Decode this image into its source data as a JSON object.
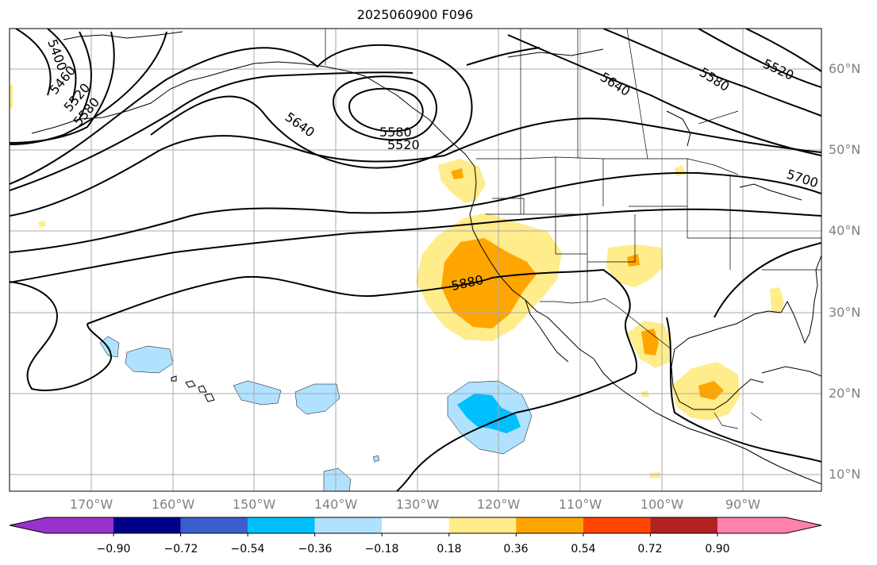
{
  "title": "2025060900 F096",
  "map": {
    "projection": "PlateCarree",
    "lon_range": [
      "180°W (approx)",
      "81°W"
    ],
    "lat_range": [
      "7°N",
      "64°N"
    ],
    "gridlines": true,
    "coastlines": true,
    "state_borders": true
  },
  "lat_labels": [
    "60°N",
    "50°N",
    "40°N",
    "30°N",
    "20°N",
    "10°N"
  ],
  "lon_labels": [
    "170°W",
    "160°W",
    "150°W",
    "140°W",
    "130°W",
    "120°W",
    "110°W",
    "100°W",
    "90°W"
  ],
  "contour_labels": [
    {
      "text": "5400"
    },
    {
      "text": "5460"
    },
    {
      "text": "5520"
    },
    {
      "text": "5580"
    },
    {
      "text": "5640"
    },
    {
      "text": "5580"
    },
    {
      "text": "5520"
    },
    {
      "text": "5640"
    },
    {
      "text": "5580"
    },
    {
      "text": "5520"
    },
    {
      "text": "5700"
    },
    {
      "text": "5880"
    }
  ],
  "colorbar": {
    "ticks": [
      "−0.90",
      "−0.72",
      "−0.54",
      "−0.36",
      "−0.18",
      "0.18",
      "0.36",
      "0.54",
      "0.72",
      "0.90"
    ],
    "colors": [
      "#9932cc",
      "#00008b",
      "#3a5fcd",
      "#00bfff",
      "#b0e2ff",
      "#ffffff",
      "#ffec8b",
      "#ffa500",
      "#ff4500",
      "#b22222",
      "#ff82ab"
    ]
  },
  "fill_colors": {
    "pos_light": "#ffec8b",
    "pos_mid": "#ffa500",
    "neg_light": "#b0e2ff",
    "neg_mid": "#00bfff"
  }
}
